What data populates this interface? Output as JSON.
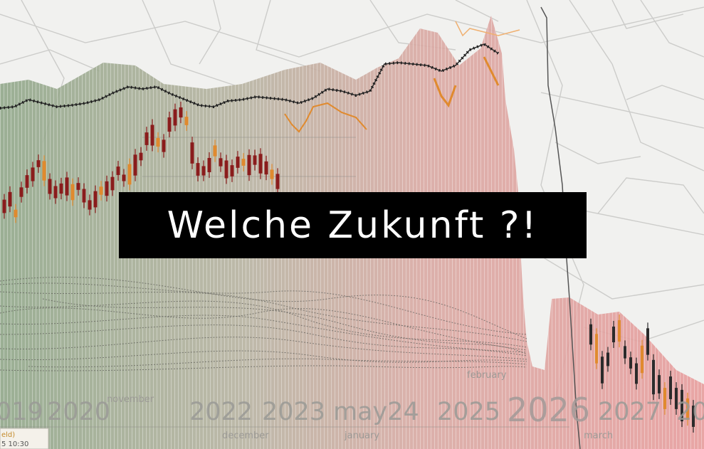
{
  "headline": "Welche Zukunft ?!",
  "axis_years": {
    "y2019": "019",
    "y2020": "2020",
    "y2022": "2022",
    "y2023": "2023",
    "may24": "may24",
    "y2025": "2025",
    "y2026": "2026",
    "y2027": "2027",
    "y2028": "20"
  },
  "axis_months": {
    "november": "november",
    "february": "february",
    "december": "december",
    "january": "january",
    "march": "march"
  },
  "legend": {
    "field": "eld)",
    "time": "5 10:30"
  },
  "colors": {
    "green_tint": "#9dae92",
    "red_tint": "#e5a6a6",
    "candle_dark": "#8a1c1c",
    "candle_orange": "#e08a2e",
    "headline_bg": "#000000",
    "headline_fg": "#ffffff"
  }
}
